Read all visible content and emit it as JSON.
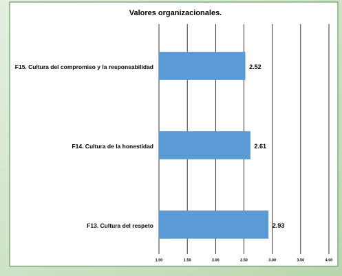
{
  "chart_data": {
    "type": "bar",
    "orientation": "horizontal",
    "title": "Valores organizacionales.",
    "categories": [
      "F15. Cultura del compromiso y la responsabilidad",
      "F14. Cultura de la honestidad",
      "F13. Cultura del respeto"
    ],
    "values": [
      2.52,
      2.61,
      2.93
    ],
    "color": "#5b9bd5",
    "xlim": [
      1,
      4
    ],
    "xticks": [
      {
        "value": 1,
        "label": "1.00"
      },
      {
        "value": 1.5,
        "label": "1.50"
      },
      {
        "value": 2,
        "label": "2.00"
      },
      {
        "value": 2.5,
        "label": "2.50"
      },
      {
        "value": 3,
        "label": "3.00"
      },
      {
        "value": 3.5,
        "label": "3.50"
      },
      {
        "value": 4,
        "label": "4.00"
      }
    ],
    "grid": true
  }
}
